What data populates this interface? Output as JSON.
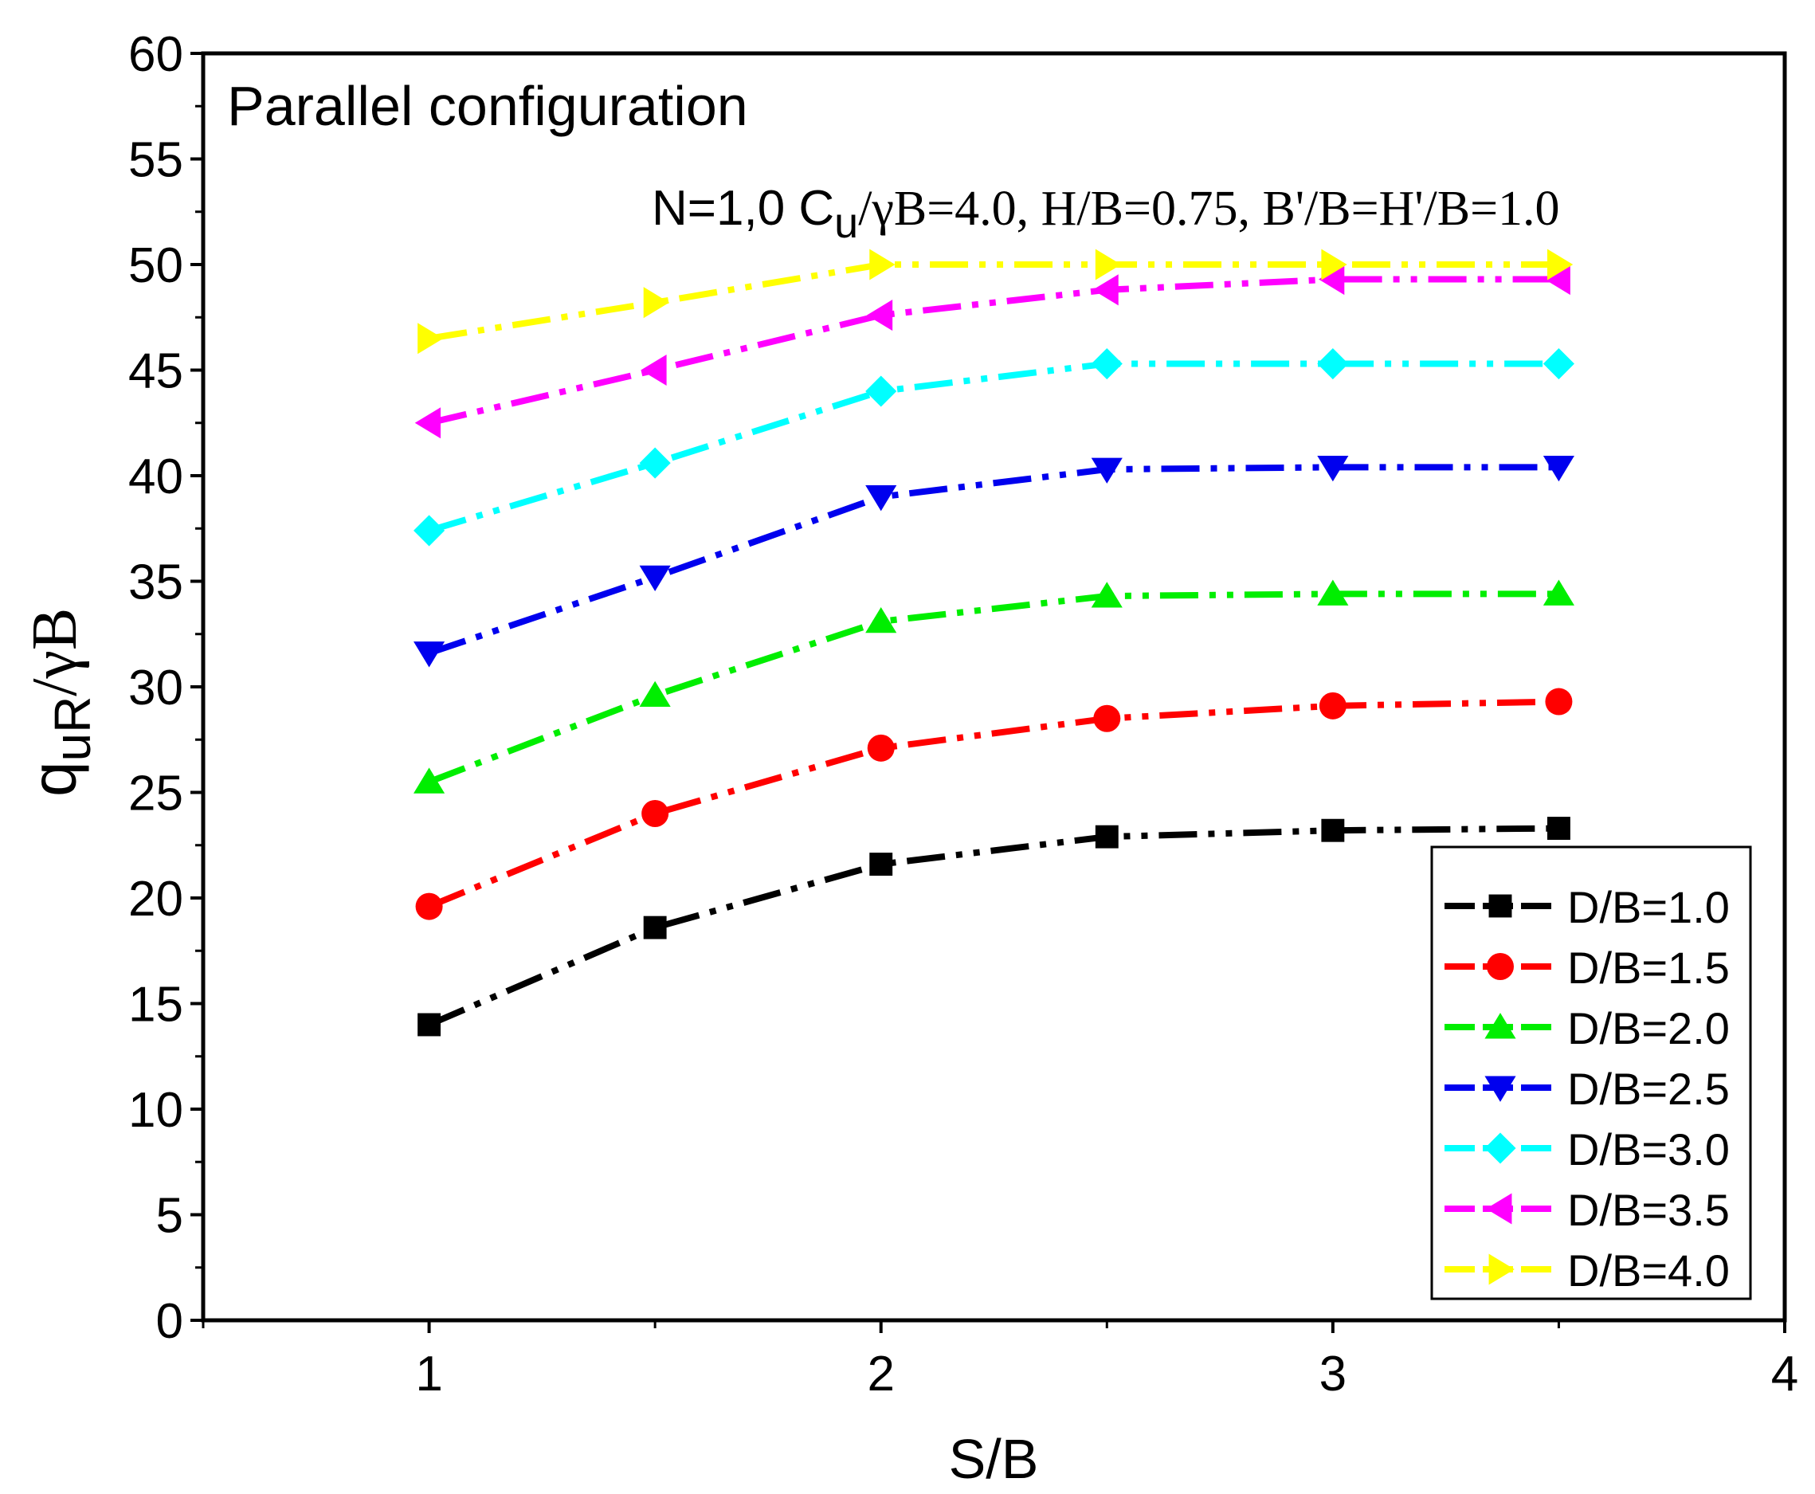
{
  "chart_data": {
    "type": "line",
    "title": "Parallel configuration",
    "subtitle": {
      "prefix": "N=1,0 C",
      "prefix_sub": "u",
      "rest": "/γB=4.0, H/B=0.75, B'/B=H'/B=1.0"
    },
    "xlabel": "S/B",
    "ylabel": {
      "main": "q",
      "sub": "uR",
      "rest": "/γB"
    },
    "xlim": [
      0.5,
      4
    ],
    "ylim": [
      0,
      60
    ],
    "x_ticks": [
      1,
      2,
      3,
      4
    ],
    "x_tick_labels": [
      "1",
      "2",
      "3",
      "4"
    ],
    "y_ticks": [
      0,
      5,
      10,
      15,
      20,
      25,
      30,
      35,
      40,
      45,
      50,
      55,
      60
    ],
    "y_tick_labels": [
      "0",
      "5",
      "10",
      "15",
      "20",
      "25",
      "30",
      "35",
      "40",
      "45",
      "50",
      "55",
      "60"
    ],
    "grid": false,
    "legend_position": "bottom-right",
    "x": [
      1,
      1.5,
      2,
      2.5,
      3,
      3.5
    ],
    "series": [
      {
        "name": "D/B=1.0",
        "color": "#000000",
        "marker": "square",
        "values": [
          14.0,
          18.6,
          21.6,
          22.9,
          23.2,
          23.3
        ]
      },
      {
        "name": "D/B=1.5",
        "color": "#ff0000",
        "marker": "circle",
        "values": [
          19.6,
          24.0,
          27.1,
          28.5,
          29.1,
          29.3
        ]
      },
      {
        "name": "D/B=2.0",
        "color": "#00ee00",
        "marker": "triangle-up",
        "values": [
          25.5,
          29.6,
          33.1,
          34.3,
          34.4,
          34.4
        ]
      },
      {
        "name": "D/B=2.5",
        "color": "#0000ee",
        "marker": "triangle-down",
        "values": [
          31.6,
          35.2,
          39.0,
          40.3,
          40.4,
          40.4
        ]
      },
      {
        "name": "D/B=3.0",
        "color": "#00ffff",
        "marker": "diamond",
        "values": [
          37.4,
          40.6,
          44.0,
          45.3,
          45.3,
          45.3
        ]
      },
      {
        "name": "D/B=3.5",
        "color": "#ff00ff",
        "marker": "triangle-left",
        "values": [
          42.5,
          45.0,
          47.6,
          48.8,
          49.3,
          49.3
        ]
      },
      {
        "name": "D/B=4.0",
        "color": "#ffff00",
        "marker": "triangle-right",
        "values": [
          46.5,
          48.2,
          50.0,
          50.0,
          50.0,
          50.0
        ]
      }
    ]
  }
}
